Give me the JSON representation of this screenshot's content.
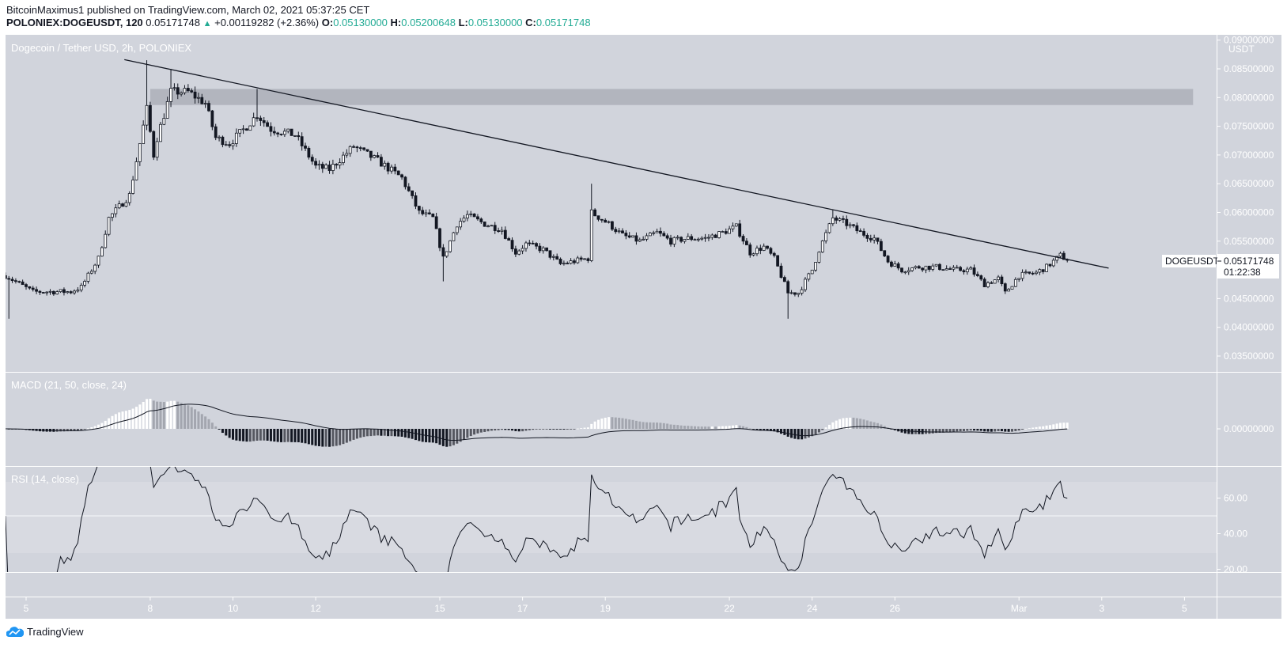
{
  "header": {
    "publish_line": "BitcoinMaximus1 published on TradingView.com, March 02, 2021 05:37:25 CET",
    "symbol": "POLONIEX:DOGEUSDT, 120",
    "last": "0.05171748",
    "change": "+0.00119282 (+2.36%)",
    "o_label": "O:",
    "o": "0.05130000",
    "h_label": "H:",
    "h": "0.05200648",
    "l_label": "L:",
    "l": "0.05130000",
    "c_label": "C:",
    "c": "0.05171748"
  },
  "colors": {
    "background": "#d1d4dc",
    "up_candle": "#ffffff",
    "down_candle": "#131722",
    "values": "#22ab94",
    "zone": "#b2b5be"
  },
  "footer": {
    "logo_text": "TradingView",
    "logo_icon": "tradingview-cloud-icon"
  },
  "chart_data": {
    "type": "candlestick",
    "title": "Dogecoin / Tether USD, 2h, POLONIEX",
    "interval_hours": 2,
    "currency_label": "USDT",
    "price_ticks": [
      "0.09000000",
      "0.08500000",
      "0.08000000",
      "0.07500000",
      "0.07000000",
      "0.06500000",
      "0.06000000",
      "0.05500000",
      "0.04500000",
      "0.04000000",
      "0.03500000"
    ],
    "last_price_label": {
      "symbol": "DOGEUSDT",
      "price": "0.05171748",
      "countdown": "01:22:38"
    },
    "time_ticks": [
      {
        "date": "2021-02-05",
        "label": "5"
      },
      {
        "date": "2021-02-08",
        "label": "8"
      },
      {
        "date": "2021-02-10",
        "label": "10"
      },
      {
        "date": "2021-02-12",
        "label": "12"
      },
      {
        "date": "2021-02-15",
        "label": "15"
      },
      {
        "date": "2021-02-17",
        "label": "17"
      },
      {
        "date": "2021-02-19",
        "label": "19"
      },
      {
        "date": "2021-02-22",
        "label": "22"
      },
      {
        "date": "2021-02-24",
        "label": "24"
      },
      {
        "date": "2021-02-26",
        "label": "26"
      },
      {
        "date": "2021-03-01",
        "label": "Mar"
      },
      {
        "date": "2021-03-03",
        "label": "3"
      },
      {
        "date": "2021-03-05",
        "label": "5"
      }
    ],
    "close_path": [
      [
        "2021-02-04T12:00",
        0.049
      ],
      [
        "2021-02-05T04:00",
        0.0462
      ],
      [
        "2021-02-06T02:00",
        0.0462
      ],
      [
        "2021-02-06T08:00",
        0.047
      ],
      [
        "2021-02-06T18:00",
        0.052
      ],
      [
        "2021-02-07T00:00",
        0.059
      ],
      [
        "2021-02-07T12:00",
        0.063
      ],
      [
        "2021-02-07T18:00",
        0.072
      ],
      [
        "2021-02-07T22:00",
        0.078
      ],
      [
        "2021-02-08T02:00",
        0.07
      ],
      [
        "2021-02-08T04:00",
        0.073
      ],
      [
        "2021-02-08T12:00",
        0.081
      ],
      [
        "2021-02-08T22:00",
        0.081
      ],
      [
        "2021-02-09T08:00",
        0.079
      ],
      [
        "2021-02-09T14:00",
        0.073
      ],
      [
        "2021-02-09T22:00",
        0.072
      ],
      [
        "2021-02-10T08:00",
        0.075
      ],
      [
        "2021-02-10T14:00",
        0.077
      ],
      [
        "2021-02-10T22:00",
        0.0745
      ],
      [
        "2021-02-11T12:00",
        0.0735
      ],
      [
        "2021-02-12T00:00",
        0.068
      ],
      [
        "2021-02-12T08:00",
        0.0675
      ],
      [
        "2021-02-12T22:00",
        0.0715
      ],
      [
        "2021-02-13T12:00",
        0.069
      ],
      [
        "2021-02-14T02:00",
        0.066
      ],
      [
        "2021-02-14T12:00",
        0.06
      ],
      [
        "2021-02-14T20:00",
        0.059
      ],
      [
        "2021-02-15T02:00",
        0.052
      ],
      [
        "2021-02-15T10:00",
        0.058
      ],
      [
        "2021-02-15T16:00",
        0.0595
      ],
      [
        "2021-02-16T02:00",
        0.058
      ],
      [
        "2021-02-16T12:00",
        0.057
      ],
      [
        "2021-02-16T20:00",
        0.053
      ],
      [
        "2021-02-17T02:00",
        0.0545
      ],
      [
        "2021-02-17T12:00",
        0.0535
      ],
      [
        "2021-02-17T22:00",
        0.051
      ],
      [
        "2021-02-18T06:00",
        0.0515
      ],
      [
        "2021-02-18T14:00",
        0.052
      ],
      [
        "2021-02-18T16:00",
        0.06
      ],
      [
        "2021-02-19T02:00",
        0.058
      ],
      [
        "2021-02-19T10:00",
        0.056
      ],
      [
        "2021-02-19T20:00",
        0.055
      ],
      [
        "2021-02-20T06:00",
        0.0565
      ],
      [
        "2021-02-20T14:00",
        0.055
      ],
      [
        "2021-02-21T00:00",
        0.0555
      ],
      [
        "2021-02-21T10:00",
        0.0555
      ],
      [
        "2021-02-21T20:00",
        0.0565
      ],
      [
        "2021-02-22T04:00",
        0.0575
      ],
      [
        "2021-02-22T12:00",
        0.053
      ],
      [
        "2021-02-22T20:00",
        0.054
      ],
      [
        "2021-02-23T02:00",
        0.052
      ],
      [
        "2021-02-23T10:00",
        0.046
      ],
      [
        "2021-02-23T16:00",
        0.046
      ],
      [
        "2021-02-24T00:00",
        0.05
      ],
      [
        "2021-02-24T04:00",
        0.0535
      ],
      [
        "2021-02-24T12:00",
        0.059
      ],
      [
        "2021-02-24T20:00",
        0.058
      ],
      [
        "2021-02-25T04:00",
        0.0565
      ],
      [
        "2021-02-25T12:00",
        0.0555
      ],
      [
        "2021-02-25T20:00",
        0.0515
      ],
      [
        "2021-02-26T04:00",
        0.05
      ],
      [
        "2021-02-26T14:00",
        0.0505
      ],
      [
        "2021-02-27T00:00",
        0.0505
      ],
      [
        "2021-02-27T10:00",
        0.05
      ],
      [
        "2021-02-27T20:00",
        0.05
      ],
      [
        "2021-02-28T04:00",
        0.0475
      ],
      [
        "2021-02-28T12:00",
        0.0485
      ],
      [
        "2021-02-28T16:00",
        0.046
      ],
      [
        "2021-03-01T00:00",
        0.049
      ],
      [
        "2021-03-01T10:00",
        0.0495
      ],
      [
        "2021-03-01T16:00",
        0.0505
      ],
      [
        "2021-03-02T00:00",
        0.0525
      ],
      [
        "2021-03-02T04:00",
        0.05171748
      ]
    ],
    "notable_wicks": [
      {
        "time": "2021-02-04T14:00",
        "low": 0.0415
      },
      {
        "time": "2021-02-07T22:00",
        "high": 0.0865
      },
      {
        "time": "2021-02-08T12:00",
        "high": 0.085
      },
      {
        "time": "2021-02-10T14:00",
        "high": 0.0815
      },
      {
        "time": "2021-02-15T02:00",
        "low": 0.048
      },
      {
        "time": "2021-02-18T16:00",
        "high": 0.065
      },
      {
        "time": "2021-02-23T10:00",
        "low": 0.0415
      },
      {
        "time": "2021-02-24T12:00",
        "high": 0.0605
      }
    ],
    "trendline": [
      [
        "2021-02-07T09:00",
        0.0866
      ],
      [
        "2021-03-03T04:00",
        0.0503
      ]
    ],
    "resistance_zone": {
      "start": "2021-02-08T00:00",
      "end": "2021-03-05T05:00",
      "low": 0.0787,
      "high": 0.0815
    },
    "macd": {
      "label": "MACD (21, 50, close, 24)",
      "fast": 21,
      "slow": 50,
      "signal": 24,
      "ticks": [
        "0.00000000"
      ]
    },
    "rsi": {
      "label": "RSI (14, close)",
      "period": 14,
      "ticks": [
        "60.00",
        "40.00",
        "20.00"
      ],
      "band": [
        30,
        70
      ],
      "midline": 50
    }
  }
}
